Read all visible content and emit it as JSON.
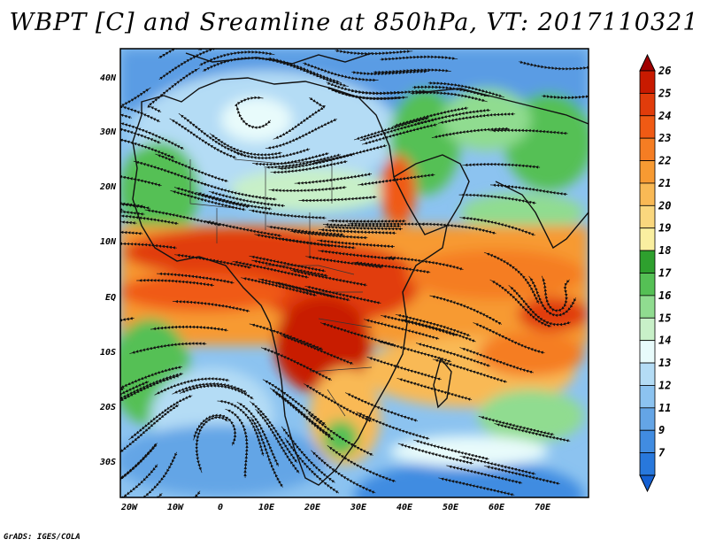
{
  "title": "WBPT [C] and Sreamline at 850hPa, VT: 2017110321",
  "footer": "GrADS: IGES/COLA",
  "map": {
    "variable": "Wet-bulb potential temperature",
    "unit": "C",
    "level": "850hPa",
    "valid_time": "2017110321",
    "lon_range": [
      -22,
      80
    ],
    "lat_range": [
      -36,
      45
    ],
    "x_tick_labels": [
      "20W",
      "10W",
      "0",
      "10E",
      "20E",
      "30E",
      "40E",
      "50E",
      "60E",
      "70E"
    ],
    "y_tick_labels": [
      "40N",
      "30N",
      "20N",
      "10N",
      "EQ",
      "10S",
      "20S",
      "30S"
    ]
  },
  "colorbar": {
    "labels": [
      "26",
      "25",
      "24",
      "23",
      "22",
      "21",
      "20",
      "19",
      "18",
      "17",
      "16",
      "15",
      "14",
      "13",
      "12",
      "11",
      "9",
      "7"
    ],
    "colors": [
      "#a00000",
      "#c81a00",
      "#e13c0b",
      "#f05a14",
      "#f57d23",
      "#f79a32",
      "#f9b955",
      "#fad77e",
      "#faefa0",
      "#2ea02e",
      "#55c055",
      "#90dc90",
      "#c8f0c8",
      "#e8fbfb",
      "#b4dcf5",
      "#8cc3f0",
      "#64a5e6",
      "#418ce1",
      "#2878dc",
      "#1460d2"
    ]
  }
}
